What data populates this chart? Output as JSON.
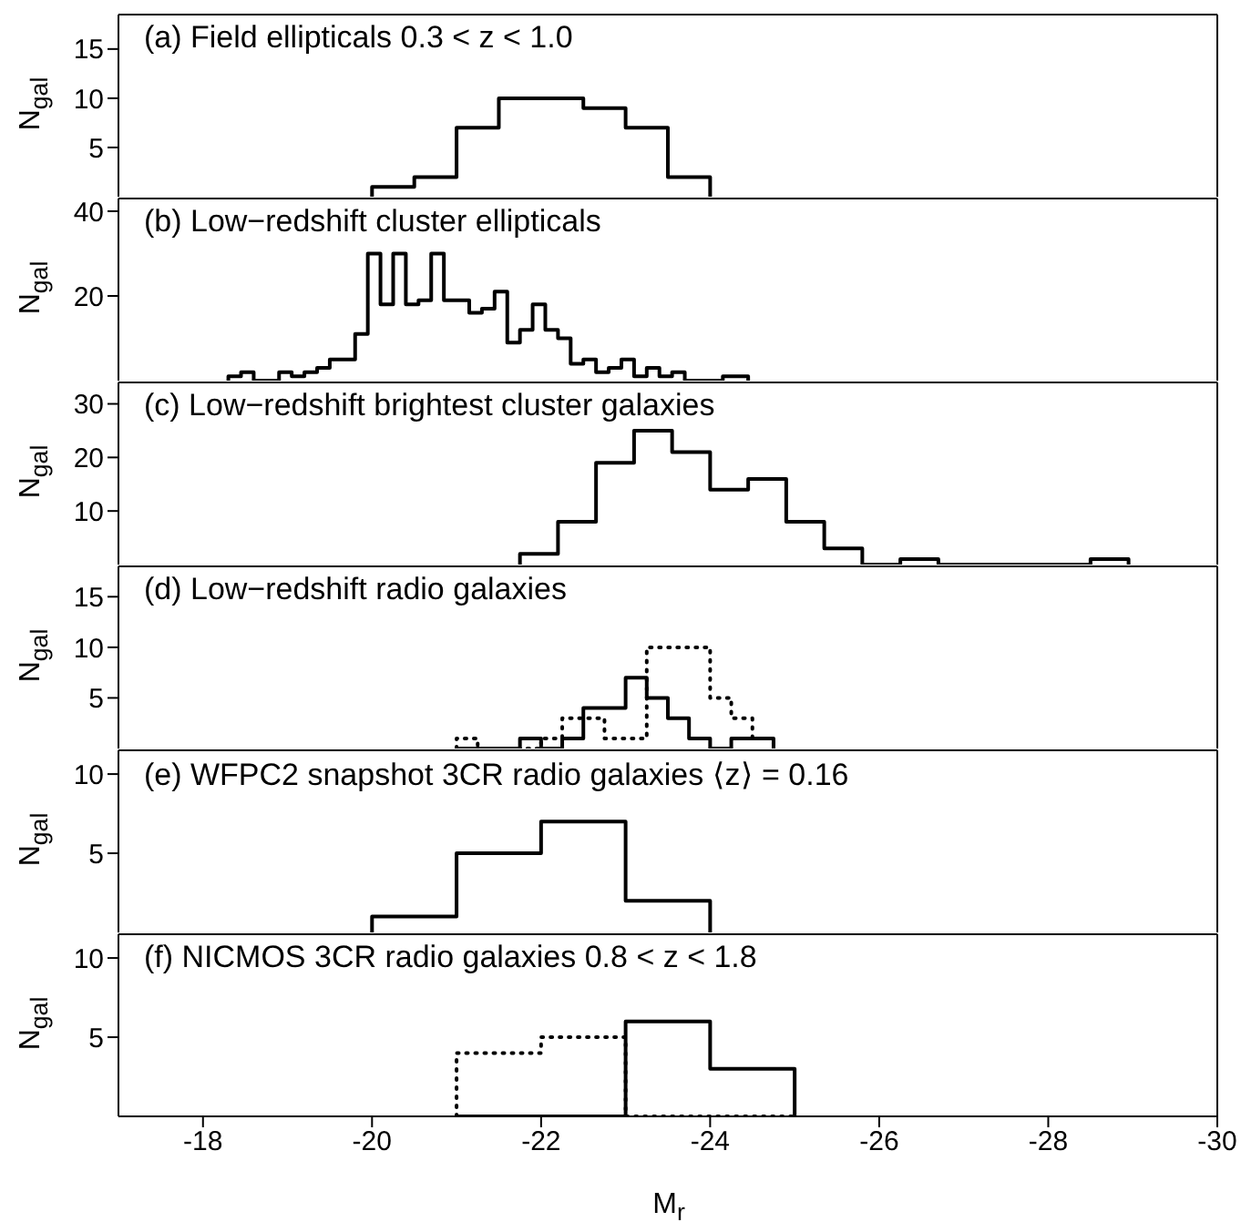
{
  "chart_data": [
    {
      "type": "histogram",
      "title": "(a) Field ellipticals 0.3 < z < 1.0",
      "ylabel": "N$_{gal}$",
      "xlim": [
        -17,
        -30
      ],
      "xticks": [
        -18,
        -20,
        -22,
        -24,
        -26,
        -28,
        -30
      ],
      "ylim": [
        0,
        18.5
      ],
      "yticks": [
        5,
        10,
        15
      ],
      "tick_labels": "y",
      "color": "#000000",
      "bins": [
        -20,
        -20.5,
        -21,
        -21.5,
        -22,
        -22.5,
        -23,
        -23.5,
        -24
      ],
      "values": [
        1,
        2,
        7,
        10,
        10,
        9,
        7,
        2
      ]
    },
    {
      "type": "histogram",
      "title": "(b) Low−redshift cluster ellipticals",
      "ylabel": "N$_{gal}$",
      "xlim": [
        -17,
        -30
      ],
      "xticks": [
        -18,
        -20,
        -22,
        -24,
        -26,
        -28,
        -30
      ],
      "ylim": [
        0,
        43
      ],
      "yticks": [
        20,
        40
      ],
      "tick_labels": "y",
      "color": "#000000",
      "bins": [
        -18.3,
        -18.45,
        -18.6,
        -18.75,
        -18.9,
        -19.05,
        -19.2,
        -19.35,
        -19.5,
        -19.65,
        -19.8,
        -19.95,
        -20.1,
        -20.25,
        -20.4,
        -20.55,
        -20.7,
        -20.85,
        -21,
        -21.15,
        -21.3,
        -21.45,
        -21.6,
        -21.75,
        -21.9,
        -22.05,
        -22.2,
        -22.35,
        -22.5,
        -22.65,
        -22.8,
        -22.95,
        -23.1,
        -23.25,
        -23.4,
        -23.55,
        -23.7,
        -23.85,
        -24,
        -24.15,
        -24.3,
        -24.45
      ],
      "values": [
        1,
        2,
        0,
        0,
        2,
        1,
        2,
        3,
        5,
        5,
        11,
        30,
        18,
        30,
        18,
        19,
        30,
        19,
        19,
        16,
        17,
        21,
        9,
        12,
        18,
        12,
        10,
        4,
        5,
        2,
        3,
        5,
        1,
        3,
        1,
        2,
        0,
        0,
        0,
        1,
        1
      ]
    },
    {
      "type": "histogram",
      "title": "(c) Low−redshift brightest cluster galaxies",
      "ylabel": "N$_{gal}$",
      "xlim": [
        -17,
        -30
      ],
      "xticks": [
        -18,
        -20,
        -22,
        -24,
        -26,
        -28,
        -30
      ],
      "ylim": [
        0,
        34
      ],
      "yticks": [
        10,
        20,
        30
      ],
      "tick_labels": "y",
      "color": "#000000",
      "bins": [
        -21.75,
        -22.2,
        -22.65,
        -23.1,
        -23.55,
        -24,
        -24.45,
        -24.9,
        -25.35,
        -25.8,
        -26.25,
        -26.7,
        -27.15,
        -27.6,
        -28.05,
        -28.5,
        -28.95
      ],
      "values": [
        2,
        8,
        19,
        25,
        21,
        14,
        16,
        8,
        3,
        0,
        1,
        0,
        0,
        0,
        0,
        1
      ]
    },
    {
      "type": "histogram",
      "title": "(d) Low−redshift radio galaxies",
      "ylabel": "N$_{gal}$",
      "xlim": [
        -17,
        -30
      ],
      "xticks": [
        -18,
        -20,
        -22,
        -24,
        -26,
        -28,
        -30
      ],
      "ylim": [
        0,
        18
      ],
      "yticks": [
        5,
        10,
        15
      ],
      "tick_labels": "y",
      "bins": [
        -21,
        -21.25,
        -21.5,
        -21.75,
        -22,
        -22.25,
        -22.5,
        -22.75,
        -23,
        -23.25,
        -23.5,
        -23.75,
        -24,
        -24.25,
        -24.5,
        -24.75
      ],
      "series": [
        {
          "color": "#000000",
          "line_style": "solid",
          "values": [
            0,
            0,
            0,
            1,
            0,
            1,
            4,
            4,
            7,
            5,
            3,
            1,
            0,
            1,
            1
          ]
        },
        {
          "color": "#000000",
          "line_style": "dotted",
          "values": [
            1,
            0,
            0,
            0,
            1,
            3,
            3,
            1,
            1,
            10,
            10,
            10,
            5,
            3,
            1
          ]
        }
      ]
    },
    {
      "type": "histogram",
      "title": "(e) WFPC2 snapshot 3CR radio galaxies ⟨z⟩ = 0.16",
      "ylabel": "N$_{gal}$",
      "xlim": [
        -17,
        -30
      ],
      "xticks": [
        -18,
        -20,
        -22,
        -24,
        -26,
        -28,
        -30
      ],
      "ylim": [
        0,
        11.5
      ],
      "yticks": [
        5,
        10
      ],
      "tick_labels": "y",
      "color": "#000000",
      "bins": [
        -20,
        -21,
        -22,
        -23,
        -24
      ],
      "values": [
        1,
        5,
        7,
        2
      ]
    },
    {
      "type": "histogram",
      "title": "(f) NICMOS 3CR radio galaxies 0.8 < z < 1.8",
      "ylabel": "N$_{gal}$",
      "xlabel": "M$_{r}$",
      "xlim": [
        -17,
        -30
      ],
      "xticks": [
        -18,
        -20,
        -22,
        -24,
        -26,
        -28,
        -30
      ],
      "ylim": [
        0,
        11.5
      ],
      "yticks": [
        5,
        10
      ],
      "bins": [
        -21,
        -22,
        -23,
        -24,
        -25
      ],
      "series": [
        {
          "color": "#000000",
          "line_style": "dotted",
          "values": [
            4,
            5,
            0,
            0
          ]
        },
        {
          "color": "#000000",
          "line_style": "solid",
          "values": [
            0,
            0,
            6,
            3
          ]
        }
      ]
    }
  ]
}
